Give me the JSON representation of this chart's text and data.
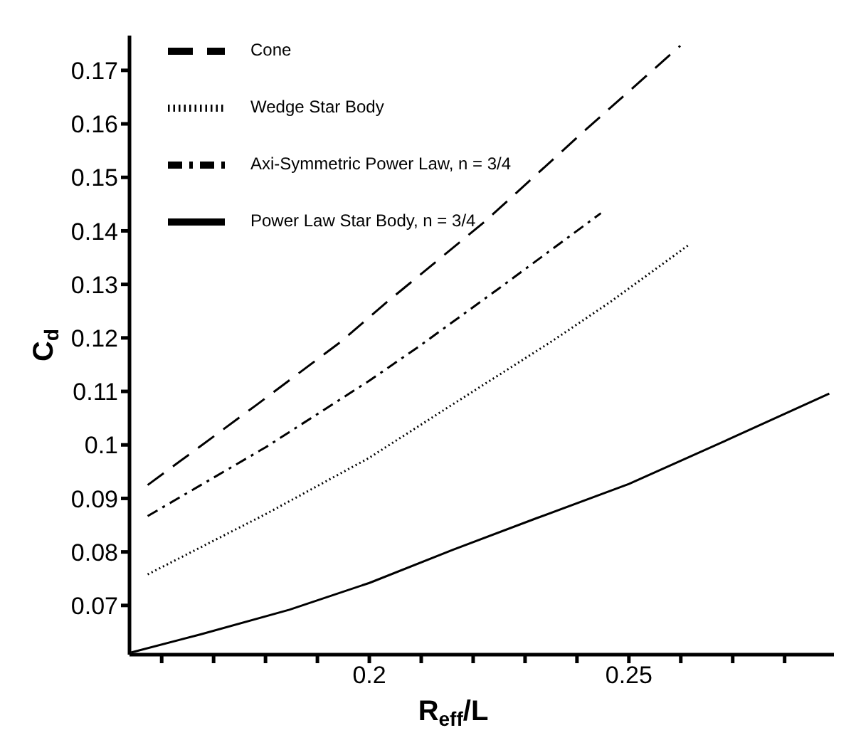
{
  "chart_data": {
    "type": "line",
    "xlabel": "R$_{eff}$/L",
    "ylabel": "C$_{d}$",
    "xlim": [
      0.1538,
      0.2895
    ],
    "ylim": [
      0.0608,
      0.1765
    ],
    "xticks": [
      {
        "value": 0.16,
        "label": null
      },
      {
        "value": 0.17,
        "label": null
      },
      {
        "value": 0.18,
        "label": null
      },
      {
        "value": 0.19,
        "label": null
      },
      0.2,
      {
        "value": 0.21,
        "label": null
      },
      {
        "value": 0.22,
        "label": null
      },
      {
        "value": 0.23,
        "label": null
      },
      {
        "value": 0.24,
        "label": null
      },
      0.25,
      {
        "value": 0.26,
        "label": null
      },
      {
        "value": 0.27,
        "label": null
      },
      {
        "value": 0.28,
        "label": null
      }
    ],
    "yticks": [
      0.07,
      0.08,
      0.09,
      0.1,
      0.11,
      0.12,
      0.13,
      0.14,
      0.15,
      0.16,
      0.17
    ],
    "legend": "top left",
    "marker": "none",
    "series": [
      {
        "name": "Cone",
        "color": "#000000",
        "line_style": "dashed",
        "x": [
          0.1573,
          0.1783,
          0.1944,
          0.2034,
          0.2222,
          0.2411,
          0.2599
        ],
        "values": [
          0.0925,
          0.1075,
          0.1192,
          0.1267,
          0.1417,
          0.1584,
          0.1746
        ]
      },
      {
        "name": "Wedge Star Body",
        "color": "#000000",
        "line_style": "dotted",
        "x": [
          0.1573,
          0.1801,
          0.2,
          0.2161,
          0.2349,
          0.2464,
          0.2617
        ],
        "values": [
          0.0758,
          0.0871,
          0.0976,
          0.1076,
          0.1192,
          0.1267,
          0.1375
        ]
      },
      {
        "name": "Axi-Symmetric Power Law, n = 3/4",
        "color": "#000000",
        "line_style": "dashdot",
        "x": [
          0.1573,
          0.1801,
          0.2,
          0.2097,
          0.2249,
          0.2446
        ],
        "values": [
          0.0867,
          0.0996,
          0.112,
          0.1185,
          0.1292,
          0.1433
        ]
      },
      {
        "name": "Power Law Star Body, n = 3/4",
        "color": "#000000",
        "line_style": "solid",
        "x": [
          0.1541,
          0.1675,
          0.1846,
          0.2,
          0.2161,
          0.2322,
          0.25,
          0.2689,
          0.2886
        ],
        "values": [
          0.0612,
          0.0646,
          0.0692,
          0.0742,
          0.0804,
          0.0863,
          0.0927,
          0.1009,
          0.1096
        ]
      }
    ]
  }
}
